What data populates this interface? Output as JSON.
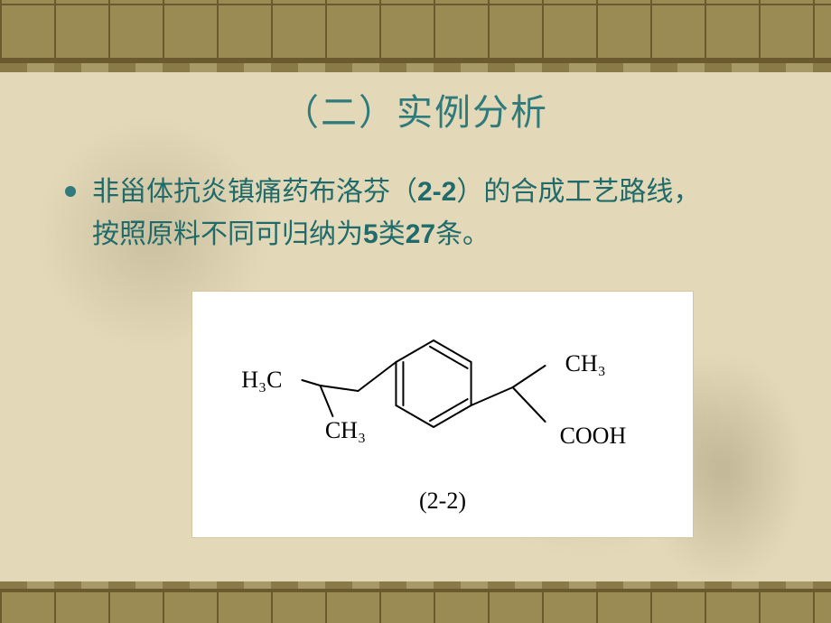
{
  "title": "（二）实例分析",
  "bullet_line1": "非甾体抗炎镇痛药布洛芬（",
  "bullet_code": "2-2",
  "bullet_line1b": "）的合成工艺路线，",
  "bullet_line2a": "按照原料不同可归纳为",
  "bullet_num1": "5",
  "bullet_cls": "类",
  "bullet_num2": "27",
  "bullet_cond": "条。",
  "structure": {
    "label_left_top": "H₃C",
    "label_left_bot": "CH₃",
    "label_right_top": "CH₃",
    "label_right_bot": "COOH",
    "caption": "(2-2)",
    "stroke": "#000000",
    "stroke_width": 2,
    "font_family": "\"Times New Roman\",serif",
    "font_size": 26
  },
  "colors": {
    "bg": "#e3d9b8",
    "accent": "#2f7a7a",
    "text": "#1f6a6a",
    "panel": "#ffffff"
  }
}
